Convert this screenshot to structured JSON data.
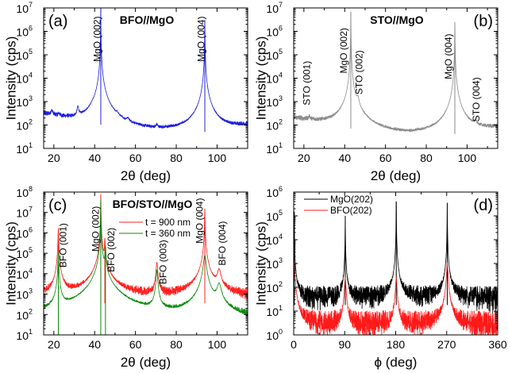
{
  "chart_data": [
    {
      "type": "line",
      "panel_label": "(a)",
      "title": "BFO//MgO",
      "xlabel": "2θ (deg)",
      "ylabel": "Intensity (cps)",
      "xlim": [
        15,
        115
      ],
      "xticks": [
        20,
        40,
        60,
        80,
        100
      ],
      "ylim": [
        10,
        10000000
      ],
      "yscale": "log",
      "panel_label_position": "top-left",
      "series": [
        {
          "color": "#1f1fe0",
          "background": [
            [
              15,
              300
            ],
            [
              28,
              170
            ],
            [
              40,
              120
            ],
            [
              55,
              60
            ],
            [
              70,
              45
            ],
            [
              85,
              45
            ],
            [
              100,
              55
            ],
            [
              115,
              95
            ]
          ],
          "noise": 0.12,
          "peaks": [
            {
              "x": 19,
              "h": 150,
              "w": 0.5
            },
            {
              "x": 22.5,
              "h": 60,
              "w": 0.5
            },
            {
              "x": 31.8,
              "h": 350,
              "w": 0.4
            },
            {
              "x": 39,
              "h": 90,
              "w": 0.6
            },
            {
              "x": 43,
              "h": 10000000,
              "w": 0.04
            },
            {
              "x": 43,
              "h": 3000,
              "w": 0.5
            },
            {
              "x": 51,
              "h": 50,
              "w": 0.5
            },
            {
              "x": 56.3,
              "h": 50,
              "w": 0.6
            },
            {
              "x": 70.5,
              "h": 30,
              "w": 0.4
            },
            {
              "x": 94,
              "h": 3000000,
              "w": 0.05
            },
            {
              "x": 94,
              "h": 1500,
              "w": 0.8
            }
          ]
        }
      ],
      "annotations": [
        {
          "text": "MgO (002)",
          "x": 41.2,
          "y": 50000
        },
        {
          "text": "MgO (004)",
          "x": 92.3,
          "y": 50000
        }
      ]
    },
    {
      "type": "line",
      "panel_label": "(b)",
      "title": "STO//MgO",
      "xlabel": "2θ (deg)",
      "ylabel": "Intensity (cps)",
      "xlim": [
        15,
        115
      ],
      "xticks": [
        20,
        40,
        60,
        80,
        100
      ],
      "ylim": [
        10,
        10000000
      ],
      "yscale": "log",
      "panel_label_position": "top-right",
      "series": [
        {
          "color": "#8c8c8c",
          "background": [
            [
              15,
              200
            ],
            [
              30,
              120
            ],
            [
              40,
              80
            ],
            [
              55,
              40
            ],
            [
              70,
              30
            ],
            [
              85,
              35
            ],
            [
              100,
              45
            ],
            [
              115,
              75
            ]
          ],
          "noise": 0.12,
          "peaks": [
            {
              "x": 22.7,
              "h": 60,
              "w": 0.4
            },
            {
              "x": 43,
              "h": 7000000,
              "w": 0.04
            },
            {
              "x": 43,
              "h": 1500,
              "w": 0.6
            },
            {
              "x": 46.5,
              "h": 800,
              "w": 0.5
            },
            {
              "x": 94,
              "h": 2500000,
              "w": 0.05
            },
            {
              "x": 94,
              "h": 1200,
              "w": 0.8
            },
            {
              "x": 104.2,
              "h": 40,
              "w": 0.6
            }
          ]
        }
      ],
      "annotations": [
        {
          "text": "STO (001)",
          "x": 21.5,
          "y": 700
        },
        {
          "text": "MgO (002)",
          "x": 39.6,
          "y": 16000
        },
        {
          "text": "STO (002)",
          "x": 47.2,
          "y": 2000
        },
        {
          "text": "MgO (004)",
          "x": 90.8,
          "y": 9000
        },
        {
          "text": "STO (004)",
          "x": 104.5,
          "y": 140
        }
      ]
    },
    {
      "type": "line",
      "panel_label": "(c)",
      "title": "BFO/STO//MgO",
      "xlabel": "2θ (deg)",
      "ylabel": "Intensity (cps)",
      "xlim": [
        15,
        115
      ],
      "xticks": [
        20,
        40,
        60,
        80,
        100
      ],
      "ylim": [
        10,
        100000000
      ],
      "yscale": "log",
      "panel_label_position": "top-left",
      "series": [
        {
          "name": "t = 900 nm",
          "color": "#ff2020",
          "band": [
            350,
            1700
          ],
          "peaks": [
            {
              "x": 22.2,
              "h": 1700000,
              "w": 0.12
            },
            {
              "x": 22.2,
              "h": 3000,
              "w": 0.6
            },
            {
              "x": 43,
              "h": 80000000,
              "w": 0.05
            },
            {
              "x": 45,
              "h": 500000,
              "w": 0.15
            },
            {
              "x": 45,
              "h": 4000,
              "w": 0.8
            },
            {
              "x": 70.5,
              "h": 35000,
              "w": 0.3
            },
            {
              "x": 94,
              "h": 15000000,
              "w": 0.08
            },
            {
              "x": 94,
              "h": 40000,
              "w": 0.8
            },
            {
              "x": 101,
              "h": 14000,
              "w": 0.8
            }
          ]
        },
        {
          "name": "t = 360 nm",
          "color": "#0a8a0a",
          "band": [
            10,
            110
          ],
          "peaks": [
            {
              "x": 22.2,
              "h": 100000,
              "w": 0.15
            },
            {
              "x": 22.2,
              "h": 1000,
              "w": 0.6
            },
            {
              "x": 43,
              "h": 40000000,
              "w": 0.05
            },
            {
              "x": 43.5,
              "h": 2000,
              "w": 0.8
            },
            {
              "x": 45.3,
              "h": 200000,
              "w": 0.2
            },
            {
              "x": 45.3,
              "h": 1500,
              "w": 0.9
            },
            {
              "x": 70.5,
              "h": 15000,
              "w": 0.3
            },
            {
              "x": 94,
              "h": 80000,
              "w": 0.5
            },
            {
              "x": 94,
              "h": 1500,
              "w": 1.2
            },
            {
              "x": 101,
              "h": 3000,
              "w": 0.9
            }
          ]
        }
      ],
      "legend_position": "top-center",
      "annotations": [
        {
          "text": "BFO (001)",
          "x": 24.5,
          "y": 20000
        },
        {
          "text": "MgO (002)",
          "x": 40.5,
          "y": 120000
        },
        {
          "text": "BFO (002)",
          "x": 48,
          "y": 12000
        },
        {
          "text": "BFO (003)",
          "x": 73.5,
          "y": 3000
        },
        {
          "text": "MgO (004)",
          "x": 91.5,
          "y": 300000
        },
        {
          "text": "BFO (004)",
          "x": 102.5,
          "y": 25000
        }
      ]
    },
    {
      "type": "line",
      "panel_label": "(d)",
      "title": "",
      "xlabel": "ϕ (deg)",
      "ylabel": "Intensity (cps)",
      "xlim": [
        0,
        360
      ],
      "xticks": [
        0,
        90,
        180,
        270,
        360
      ],
      "ylim": [
        1,
        1000000
      ],
      "yscale": "log",
      "panel_label_position": "top-right",
      "series": [
        {
          "name": "MgO(202)",
          "color": "#000000",
          "band": [
            18,
            110
          ],
          "peaks": [
            {
              "x": 1,
              "h": 150000,
              "w": 0.15
            },
            {
              "x": 1,
              "h": 300,
              "w": 1.5
            },
            {
              "x": 91,
              "h": 100000,
              "w": 0.15
            },
            {
              "x": 91,
              "h": 400,
              "w": 1.2
            },
            {
              "x": 181,
              "h": 400000,
              "w": 0.15
            },
            {
              "x": 181,
              "h": 500,
              "w": 1.2
            },
            {
              "x": 271,
              "h": 350000,
              "w": 0.15
            },
            {
              "x": 271,
              "h": 500,
              "w": 1.2
            }
          ]
        },
        {
          "name": "BFO(202)",
          "color": "#ff1a1a",
          "band": [
            1,
            10
          ],
          "peaks": [
            {
              "x": 1,
              "h": 1000,
              "w": 1.0
            },
            {
              "x": 91,
              "h": 250,
              "w": 1.0
            },
            {
              "x": 181,
              "h": 250,
              "w": 1.0
            },
            {
              "x": 271,
              "h": 1000,
              "w": 1.0
            }
          ]
        }
      ],
      "legend_position": "top-left",
      "annotations": []
    }
  ]
}
